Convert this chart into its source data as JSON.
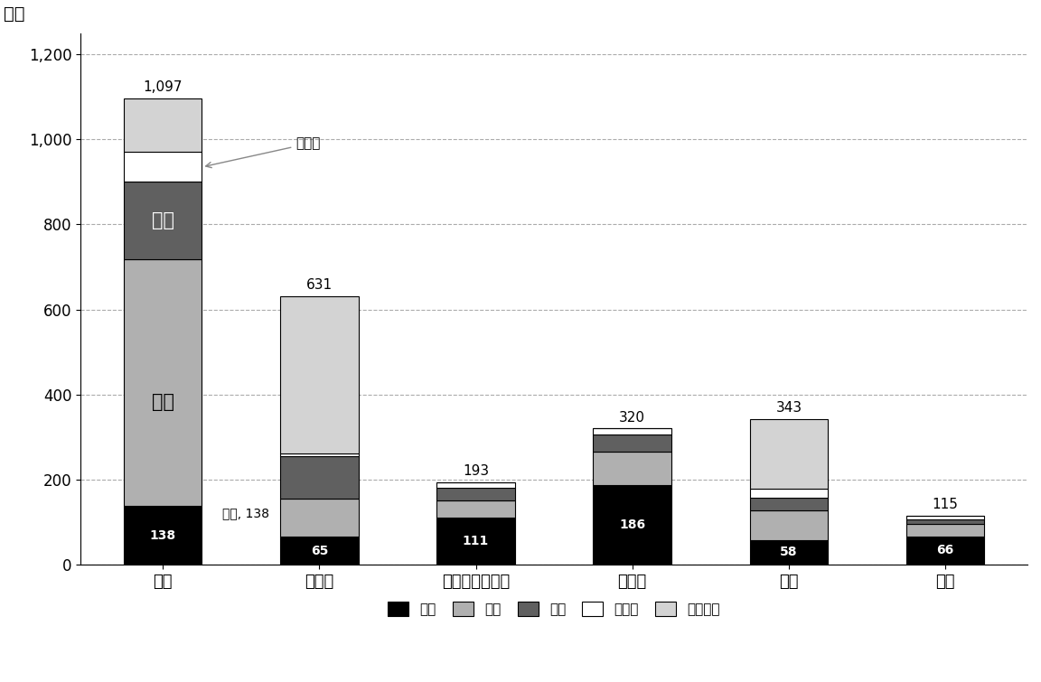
{
  "categories": [
    "米国",
    "ドイツ",
    "オーストラリア",
    "カナダ",
    "英国",
    "日本"
  ],
  "totals_label": [
    1097,
    631,
    193,
    320,
    343,
    115
  ],
  "series_order": [
    "労働",
    "家族",
    "人道",
    "その他",
    "自由移動"
  ],
  "series": {
    "労働": [
      138,
      65,
      111,
      186,
      58,
      66
    ],
    "家族": [
      580,
      90,
      40,
      80,
      70,
      30
    ],
    "人道": [
      182,
      100,
      30,
      40,
      30,
      10
    ],
    "その他": [
      70,
      7,
      12,
      14,
      20,
      9
    ],
    "自由移動": [
      127,
      369,
      0,
      0,
      165,
      0
    ]
  },
  "colors": {
    "労働": "#000000",
    "家族": "#b0b0b0",
    "人道": "#606060",
    "その他": "#ffffff",
    "自由移動": "#d3d3d3"
  },
  "ylabel": "千人",
  "ylim": [
    0,
    1250
  ],
  "yticks": [
    0,
    200,
    400,
    600,
    800,
    1000,
    1200
  ],
  "bar_width": 0.5,
  "sonota_annotation": "その他",
  "jindo_label": "人道",
  "kazoku_label": "家族",
  "rodou_annotation": "労働, 138",
  "background_color": "#ffffff",
  "grid_color": "#888888"
}
